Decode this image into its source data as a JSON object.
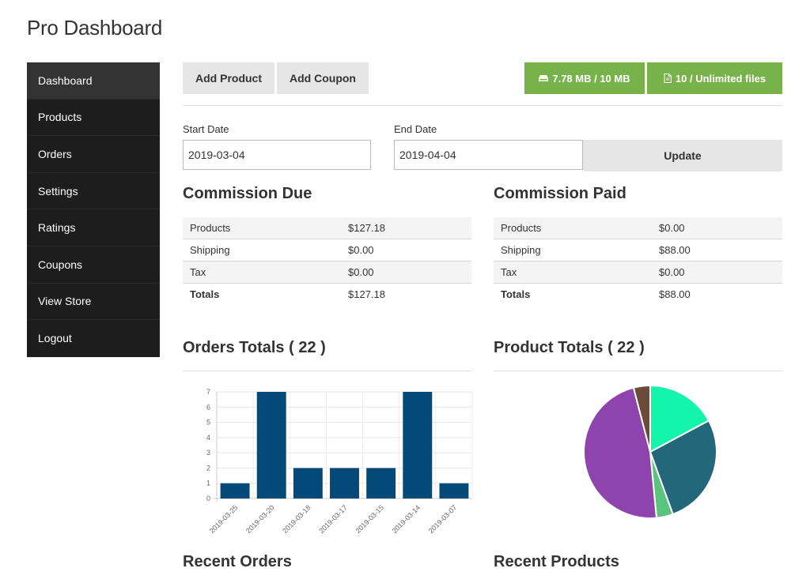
{
  "page_title": "Pro Dashboard",
  "sidebar": {
    "items": [
      {
        "label": "Dashboard",
        "active": true
      },
      {
        "label": "Products"
      },
      {
        "label": "Orders"
      },
      {
        "label": "Settings"
      },
      {
        "label": "Ratings"
      },
      {
        "label": "Coupons"
      },
      {
        "label": "View Store"
      },
      {
        "label": "Logout"
      }
    ]
  },
  "toolbar": {
    "add_product_label": "Add Product",
    "add_coupon_label": "Add Coupon",
    "storage_label": "7.78 MB / 10 MB",
    "files_label": "10 / Unlimited files",
    "storage_icon": "hdd-icon",
    "files_icon": "file-icon",
    "accent_color": "#77b24a"
  },
  "filters": {
    "start_label": "Start Date",
    "start_value": "2019-03-04",
    "end_label": "End Date",
    "end_value": "2019-04-04",
    "update_label": "Update"
  },
  "commission_due": {
    "title": "Commission Due",
    "rows": [
      {
        "label": "Products",
        "value": "$127.18"
      },
      {
        "label": "Shipping",
        "value": "$0.00"
      },
      {
        "label": "Tax",
        "value": "$0.00"
      },
      {
        "label": "Totals",
        "value": "$127.18"
      }
    ]
  },
  "commission_paid": {
    "title": "Commission Paid",
    "rows": [
      {
        "label": "Products",
        "value": "$0.00"
      },
      {
        "label": "Shipping",
        "value": "$88.00"
      },
      {
        "label": "Tax",
        "value": "$0.00"
      },
      {
        "label": "Totals",
        "value": "$88.00"
      }
    ]
  },
  "orders_totals": {
    "title": "Orders Totals ( 22 )"
  },
  "product_totals": {
    "title": "Product Totals ( 22 )"
  },
  "recent_orders": {
    "title": "Recent Orders"
  },
  "recent_products": {
    "title": "Recent Products"
  },
  "chart_data": [
    {
      "type": "bar",
      "categories": [
        "2019-03-25",
        "2019-03-20",
        "2019-03-18",
        "2019-03-17",
        "2019-03-15",
        "2019-03-14",
        "2019-03-07"
      ],
      "values": [
        1,
        7,
        2,
        2,
        2,
        7,
        1
      ],
      "ylim": [
        0,
        7
      ],
      "yticks": [
        0,
        1,
        2,
        3,
        4,
        5,
        6,
        7
      ],
      "grid": true,
      "color": "#034a78"
    },
    {
      "type": "pie",
      "values": [
        17,
        27,
        4,
        47,
        4
      ],
      "colors": [
        "#12f5ab",
        "#23687a",
        "#5ac47e",
        "#8e44ad",
        "#6b4c3b"
      ]
    }
  ]
}
